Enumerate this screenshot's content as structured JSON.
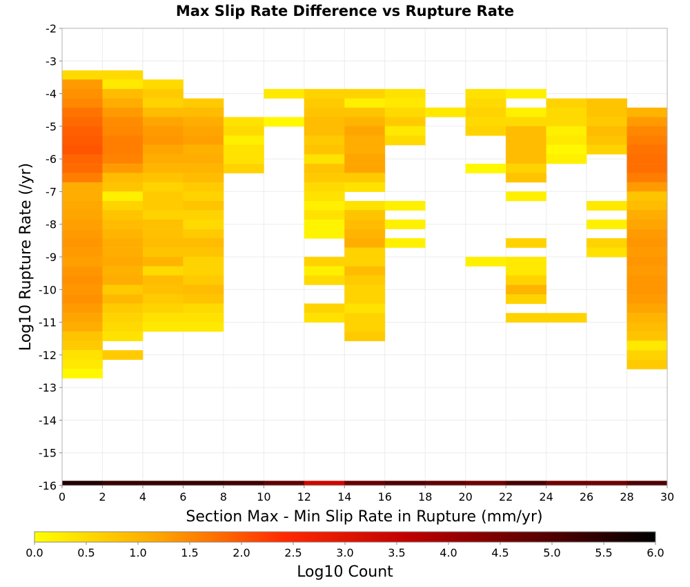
{
  "chart_data": {
    "type": "heatmap",
    "title": "Max Slip Rate Difference vs Rupture Rate",
    "xlabel": "Section Max - Min Slip Rate in Rupture (mm/yr)",
    "ylabel": "Log10 Rupture Rate (/yr)",
    "xlim": [
      0,
      30
    ],
    "ylim": [
      -16,
      -2
    ],
    "x_ticks": [
      0,
      2,
      4,
      6,
      8,
      10,
      12,
      14,
      16,
      18,
      20,
      22,
      24,
      26,
      28,
      30
    ],
    "y_ticks": [
      -2,
      -3,
      -4,
      -5,
      -6,
      -7,
      -8,
      -9,
      -10,
      -11,
      -12,
      -13,
      -14,
      -15,
      -16
    ],
    "x_bin_width": 2,
    "y_bin_height": 0.2857,
    "colorbar": {
      "label": "Log10 Count",
      "range": [
        0,
        6
      ],
      "ticks": [
        "0.0",
        "0.5",
        "1.0",
        "1.5",
        "2.0",
        "2.5",
        "3.0",
        "3.5",
        "4.0",
        "4.5",
        "5.0",
        "5.5",
        "6.0"
      ],
      "stops": [
        "#ffff00",
        "#ffd300",
        "#ffa500",
        "#ff6a00",
        "#ff2a00",
        "#e01500",
        "#c00000",
        "#900000",
        "#600000",
        "#300000",
        "#000000"
      ]
    },
    "grid": true,
    "cells": [
      {
        "x": 0,
        "y": -3.43,
        "v": 0.5
      },
      {
        "x": 0,
        "y": -3.71,
        "v": 1.3
      },
      {
        "x": 0,
        "y": -4.0,
        "v": 1.4
      },
      {
        "x": 0,
        "y": -4.29,
        "v": 1.5
      },
      {
        "x": 0,
        "y": -4.57,
        "v": 1.7
      },
      {
        "x": 0,
        "y": -4.86,
        "v": 1.8
      },
      {
        "x": 0,
        "y": -5.14,
        "v": 1.9
      },
      {
        "x": 0,
        "y": -5.43,
        "v": 1.95
      },
      {
        "x": 0,
        "y": -5.71,
        "v": 2.0
      },
      {
        "x": 0,
        "y": -6.0,
        "v": 1.85
      },
      {
        "x": 0,
        "y": -6.29,
        "v": 1.8
      },
      {
        "x": 0,
        "y": -6.57,
        "v": 1.6
      },
      {
        "x": 0,
        "y": -6.86,
        "v": 1.1
      },
      {
        "x": 0,
        "y": -7.14,
        "v": 1.1
      },
      {
        "x": 0,
        "y": -7.43,
        "v": 1.15
      },
      {
        "x": 0,
        "y": -7.71,
        "v": 1.2
      },
      {
        "x": 0,
        "y": -8.0,
        "v": 1.25
      },
      {
        "x": 0,
        "y": -8.29,
        "v": 1.3
      },
      {
        "x": 0,
        "y": -8.57,
        "v": 1.35
      },
      {
        "x": 0,
        "y": -8.86,
        "v": 1.3
      },
      {
        "x": 0,
        "y": -9.14,
        "v": 1.25
      },
      {
        "x": 0,
        "y": -9.43,
        "v": 1.35
      },
      {
        "x": 0,
        "y": -9.71,
        "v": 1.4
      },
      {
        "x": 0,
        "y": -10.0,
        "v": 1.35
      },
      {
        "x": 0,
        "y": -10.29,
        "v": 1.4
      },
      {
        "x": 0,
        "y": -10.57,
        "v": 1.3
      },
      {
        "x": 0,
        "y": -10.86,
        "v": 1.2
      },
      {
        "x": 0,
        "y": -11.14,
        "v": 1.1
      },
      {
        "x": 0,
        "y": -11.43,
        "v": 0.8
      },
      {
        "x": 0,
        "y": -11.71,
        "v": 0.7
      },
      {
        "x": 0,
        "y": -12.0,
        "v": 0.4
      },
      {
        "x": 0,
        "y": -12.29,
        "v": 0.3
      },
      {
        "x": 0,
        "y": -12.57,
        "v": 0.1
      },
      {
        "x": 2,
        "y": -3.43,
        "v": 0.5
      },
      {
        "x": 2,
        "y": -3.71,
        "v": 0.3
      },
      {
        "x": 2,
        "y": -4.0,
        "v": 0.9
      },
      {
        "x": 2,
        "y": -4.29,
        "v": 1.1
      },
      {
        "x": 2,
        "y": -4.57,
        "v": 1.3
      },
      {
        "x": 2,
        "y": -4.86,
        "v": 1.45
      },
      {
        "x": 2,
        "y": -5.14,
        "v": 1.5
      },
      {
        "x": 2,
        "y": -5.43,
        "v": 1.6
      },
      {
        "x": 2,
        "y": -5.71,
        "v": 1.6
      },
      {
        "x": 2,
        "y": -6.0,
        "v": 1.55
      },
      {
        "x": 2,
        "y": -6.29,
        "v": 1.3
      },
      {
        "x": 2,
        "y": -6.57,
        "v": 0.9
      },
      {
        "x": 2,
        "y": -6.86,
        "v": 0.8
      },
      {
        "x": 2,
        "y": -7.14,
        "v": 0.2
      },
      {
        "x": 2,
        "y": -7.43,
        "v": 0.6
      },
      {
        "x": 2,
        "y": -7.71,
        "v": 0.8
      },
      {
        "x": 2,
        "y": -8.0,
        "v": 0.9
      },
      {
        "x": 2,
        "y": -8.29,
        "v": 1.0
      },
      {
        "x": 2,
        "y": -8.57,
        "v": 1.1
      },
      {
        "x": 2,
        "y": -8.86,
        "v": 1.1
      },
      {
        "x": 2,
        "y": -9.14,
        "v": 1.15
      },
      {
        "x": 2,
        "y": -9.43,
        "v": 1.05
      },
      {
        "x": 2,
        "y": -9.71,
        "v": 1.1
      },
      {
        "x": 2,
        "y": -10.0,
        "v": 0.7
      },
      {
        "x": 2,
        "y": -10.29,
        "v": 0.95
      },
      {
        "x": 2,
        "y": -10.57,
        "v": 0.7
      },
      {
        "x": 2,
        "y": -10.86,
        "v": 0.6
      },
      {
        "x": 2,
        "y": -11.14,
        "v": 0.5
      },
      {
        "x": 2,
        "y": -11.43,
        "v": 0.4
      },
      {
        "x": 2,
        "y": -12.0,
        "v": 0.7
      },
      {
        "x": 4,
        "y": -3.71,
        "v": 0.5
      },
      {
        "x": 4,
        "y": -4.0,
        "v": 0.7
      },
      {
        "x": 4,
        "y": -4.29,
        "v": 0.6
      },
      {
        "x": 4,
        "y": -4.57,
        "v": 0.9
      },
      {
        "x": 4,
        "y": -4.86,
        "v": 1.2
      },
      {
        "x": 4,
        "y": -5.14,
        "v": 1.3
      },
      {
        "x": 4,
        "y": -5.43,
        "v": 1.35
      },
      {
        "x": 4,
        "y": -5.71,
        "v": 1.2
      },
      {
        "x": 4,
        "y": -6.0,
        "v": 1.1
      },
      {
        "x": 4,
        "y": -6.29,
        "v": 1.0
      },
      {
        "x": 4,
        "y": -6.57,
        "v": 0.8
      },
      {
        "x": 4,
        "y": -6.86,
        "v": 0.6
      },
      {
        "x": 4,
        "y": -7.14,
        "v": 0.7
      },
      {
        "x": 4,
        "y": -7.43,
        "v": 0.7
      },
      {
        "x": 4,
        "y": -7.71,
        "v": 0.6
      },
      {
        "x": 4,
        "y": -8.0,
        "v": 0.85
      },
      {
        "x": 4,
        "y": -8.29,
        "v": 0.85
      },
      {
        "x": 4,
        "y": -8.57,
        "v": 0.9
      },
      {
        "x": 4,
        "y": -8.86,
        "v": 0.8
      },
      {
        "x": 4,
        "y": -9.14,
        "v": 1.0
      },
      {
        "x": 4,
        "y": -9.43,
        "v": 0.5
      },
      {
        "x": 4,
        "y": -9.71,
        "v": 0.9
      },
      {
        "x": 4,
        "y": -10.0,
        "v": 0.85
      },
      {
        "x": 4,
        "y": -10.29,
        "v": 0.7
      },
      {
        "x": 4,
        "y": -10.57,
        "v": 0.6
      },
      {
        "x": 4,
        "y": -10.86,
        "v": 0.4
      },
      {
        "x": 4,
        "y": -11.14,
        "v": 0.3
      },
      {
        "x": 6,
        "y": -4.29,
        "v": 0.7
      },
      {
        "x": 6,
        "y": -4.57,
        "v": 0.9
      },
      {
        "x": 6,
        "y": -4.86,
        "v": 1.1
      },
      {
        "x": 6,
        "y": -5.14,
        "v": 1.2
      },
      {
        "x": 6,
        "y": -5.43,
        "v": 1.25
      },
      {
        "x": 6,
        "y": -5.71,
        "v": 1.05
      },
      {
        "x": 6,
        "y": -6.0,
        "v": 1.1
      },
      {
        "x": 6,
        "y": -6.29,
        "v": 1.0
      },
      {
        "x": 6,
        "y": -6.57,
        "v": 0.9
      },
      {
        "x": 6,
        "y": -6.86,
        "v": 0.7
      },
      {
        "x": 6,
        "y": -7.14,
        "v": 0.6
      },
      {
        "x": 6,
        "y": -7.43,
        "v": 0.8
      },
      {
        "x": 6,
        "y": -7.71,
        "v": 0.6
      },
      {
        "x": 6,
        "y": -8.0,
        "v": 0.5
      },
      {
        "x": 6,
        "y": -8.29,
        "v": 0.7
      },
      {
        "x": 6,
        "y": -8.57,
        "v": 0.9
      },
      {
        "x": 6,
        "y": -8.86,
        "v": 0.8
      },
      {
        "x": 6,
        "y": -9.14,
        "v": 0.6
      },
      {
        "x": 6,
        "y": -9.43,
        "v": 0.6
      },
      {
        "x": 6,
        "y": -9.71,
        "v": 0.7
      },
      {
        "x": 6,
        "y": -10.0,
        "v": 0.9
      },
      {
        "x": 6,
        "y": -10.29,
        "v": 0.8
      },
      {
        "x": 6,
        "y": -10.57,
        "v": 0.5
      },
      {
        "x": 6,
        "y": -10.86,
        "v": 0.4
      },
      {
        "x": 6,
        "y": -11.14,
        "v": 0.3
      },
      {
        "x": 8,
        "y": -4.86,
        "v": 0.4
      },
      {
        "x": 8,
        "y": -5.14,
        "v": 0.5
      },
      {
        "x": 8,
        "y": -5.43,
        "v": 0.2
      },
      {
        "x": 8,
        "y": -5.71,
        "v": 0.4
      },
      {
        "x": 8,
        "y": -6.0,
        "v": 0.4
      },
      {
        "x": 8,
        "y": -6.29,
        "v": 0.6
      },
      {
        "x": 10,
        "y": -4.0,
        "v": 0.3
      },
      {
        "x": 10,
        "y": -4.86,
        "v": 0.1
      },
      {
        "x": 12,
        "y": -4.0,
        "v": 0.6
      },
      {
        "x": 12,
        "y": -4.29,
        "v": 0.7
      },
      {
        "x": 12,
        "y": -4.57,
        "v": 0.8
      },
      {
        "x": 12,
        "y": -4.86,
        "v": 0.9
      },
      {
        "x": 12,
        "y": -5.14,
        "v": 0.9
      },
      {
        "x": 12,
        "y": -5.43,
        "v": 0.7
      },
      {
        "x": 12,
        "y": -5.71,
        "v": 0.8
      },
      {
        "x": 12,
        "y": -6.0,
        "v": 0.4
      },
      {
        "x": 12,
        "y": -6.29,
        "v": 0.8
      },
      {
        "x": 12,
        "y": -6.57,
        "v": 0.7
      },
      {
        "x": 12,
        "y": -6.86,
        "v": 0.5
      },
      {
        "x": 12,
        "y": -7.14,
        "v": 0.4
      },
      {
        "x": 12,
        "y": -7.43,
        "v": 0.2
      },
      {
        "x": 12,
        "y": -7.71,
        "v": 0.4
      },
      {
        "x": 12,
        "y": -8.0,
        "v": 0.15
      },
      {
        "x": 12,
        "y": -8.29,
        "v": 0.15
      },
      {
        "x": 12,
        "y": -9.14,
        "v": 0.6
      },
      {
        "x": 12,
        "y": -9.43,
        "v": 0.2
      },
      {
        "x": 12,
        "y": -9.71,
        "v": 0.5
      },
      {
        "x": 12,
        "y": -10.57,
        "v": 0.6
      },
      {
        "x": 12,
        "y": -10.86,
        "v": 0.4
      },
      {
        "x": 14,
        "y": -4.0,
        "v": 0.6
      },
      {
        "x": 14,
        "y": -4.29,
        "v": 0.2
      },
      {
        "x": 14,
        "y": -4.57,
        "v": 0.8
      },
      {
        "x": 14,
        "y": -4.86,
        "v": 1.0
      },
      {
        "x": 14,
        "y": -5.14,
        "v": 1.2
      },
      {
        "x": 14,
        "y": -5.43,
        "v": 1.1
      },
      {
        "x": 14,
        "y": -5.71,
        "v": 1.1
      },
      {
        "x": 14,
        "y": -6.0,
        "v": 1.2
      },
      {
        "x": 14,
        "y": -6.29,
        "v": 1.2
      },
      {
        "x": 14,
        "y": -6.57,
        "v": 0.7
      },
      {
        "x": 14,
        "y": -6.86,
        "v": 0.4
      },
      {
        "x": 14,
        "y": -7.43,
        "v": 0.4
      },
      {
        "x": 14,
        "y": -7.71,
        "v": 0.8
      },
      {
        "x": 14,
        "y": -8.0,
        "v": 0.9
      },
      {
        "x": 14,
        "y": -8.29,
        "v": 1.0
      },
      {
        "x": 14,
        "y": -8.57,
        "v": 1.1
      },
      {
        "x": 14,
        "y": -8.86,
        "v": 0.6
      },
      {
        "x": 14,
        "y": -9.14,
        "v": 0.6
      },
      {
        "x": 14,
        "y": -9.43,
        "v": 0.9
      },
      {
        "x": 14,
        "y": -9.71,
        "v": 0.7
      },
      {
        "x": 14,
        "y": -10.0,
        "v": 0.6
      },
      {
        "x": 14,
        "y": -10.29,
        "v": 0.6
      },
      {
        "x": 14,
        "y": -10.57,
        "v": 0.4
      },
      {
        "x": 14,
        "y": -10.86,
        "v": 0.6
      },
      {
        "x": 14,
        "y": -11.14,
        "v": 0.6
      },
      {
        "x": 14,
        "y": -11.43,
        "v": 0.7
      },
      {
        "x": 16,
        "y": -4.0,
        "v": 0.4
      },
      {
        "x": 16,
        "y": -4.29,
        "v": 0.3
      },
      {
        "x": 16,
        "y": -4.57,
        "v": 0.5
      },
      {
        "x": 16,
        "y": -4.86,
        "v": 0.7
      },
      {
        "x": 16,
        "y": -5.14,
        "v": 0.3
      },
      {
        "x": 16,
        "y": -5.43,
        "v": 0.5
      },
      {
        "x": 16,
        "y": -7.43,
        "v": 0.2
      },
      {
        "x": 16,
        "y": -8.0,
        "v": 0.2
      },
      {
        "x": 16,
        "y": -8.57,
        "v": 0.2
      },
      {
        "x": 18,
        "y": -4.57,
        "v": 0.3
      },
      {
        "x": 20,
        "y": -4.0,
        "v": 0.4
      },
      {
        "x": 20,
        "y": -4.29,
        "v": 0.5
      },
      {
        "x": 20,
        "y": -4.57,
        "v": 0.6
      },
      {
        "x": 20,
        "y": -4.86,
        "v": 0.5
      },
      {
        "x": 20,
        "y": -5.14,
        "v": 0.6
      },
      {
        "x": 20,
        "y": -6.29,
        "v": 0.1
      },
      {
        "x": 20,
        "y": -9.14,
        "v": 0.2
      },
      {
        "x": 22,
        "y": -4.0,
        "v": 0.2
      },
      {
        "x": 22,
        "y": -4.57,
        "v": 0.2
      },
      {
        "x": 22,
        "y": -4.86,
        "v": 0.5
      },
      {
        "x": 22,
        "y": -5.14,
        "v": 0.9
      },
      {
        "x": 22,
        "y": -5.43,
        "v": 0.9
      },
      {
        "x": 22,
        "y": -5.71,
        "v": 0.9
      },
      {
        "x": 22,
        "y": -6.0,
        "v": 0.9
      },
      {
        "x": 22,
        "y": -6.29,
        "v": 0.6
      },
      {
        "x": 22,
        "y": -6.57,
        "v": 0.8
      },
      {
        "x": 22,
        "y": -7.14,
        "v": 0.2
      },
      {
        "x": 22,
        "y": -8.57,
        "v": 0.6
      },
      {
        "x": 22,
        "y": -9.14,
        "v": 0.3
      },
      {
        "x": 22,
        "y": -9.43,
        "v": 0.3
      },
      {
        "x": 22,
        "y": -9.71,
        "v": 0.6
      },
      {
        "x": 22,
        "y": -10.0,
        "v": 1.0
      },
      {
        "x": 22,
        "y": -10.29,
        "v": 0.6
      },
      {
        "x": 22,
        "y": -10.86,
        "v": 0.6
      },
      {
        "x": 24,
        "y": -4.29,
        "v": 0.6
      },
      {
        "x": 24,
        "y": -4.57,
        "v": 0.5
      },
      {
        "x": 24,
        "y": -4.86,
        "v": 0.5
      },
      {
        "x": 24,
        "y": -5.14,
        "v": 0.2
      },
      {
        "x": 24,
        "y": -5.43,
        "v": 0.3
      },
      {
        "x": 24,
        "y": -5.71,
        "v": 0.1
      },
      {
        "x": 24,
        "y": -6.0,
        "v": 0.2
      },
      {
        "x": 24,
        "y": -10.86,
        "v": 0.6
      },
      {
        "x": 26,
        "y": -4.29,
        "v": 0.8
      },
      {
        "x": 26,
        "y": -4.57,
        "v": 0.8
      },
      {
        "x": 26,
        "y": -4.86,
        "v": 0.7
      },
      {
        "x": 26,
        "y": -5.14,
        "v": 0.9
      },
      {
        "x": 26,
        "y": -5.43,
        "v": 0.8
      },
      {
        "x": 26,
        "y": -5.71,
        "v": 0.6
      },
      {
        "x": 26,
        "y": -7.43,
        "v": 0.3
      },
      {
        "x": 26,
        "y": -8.0,
        "v": 0.2
      },
      {
        "x": 26,
        "y": -8.57,
        "v": 0.6
      },
      {
        "x": 26,
        "y": -8.86,
        "v": 0.4
      },
      {
        "x": 28,
        "y": -4.57,
        "v": 1.0
      },
      {
        "x": 28,
        "y": -4.86,
        "v": 1.3
      },
      {
        "x": 28,
        "y": -5.14,
        "v": 1.5
      },
      {
        "x": 28,
        "y": -5.43,
        "v": 1.6
      },
      {
        "x": 28,
        "y": -5.71,
        "v": 1.7
      },
      {
        "x": 28,
        "y": -6.0,
        "v": 1.75
      },
      {
        "x": 28,
        "y": -6.29,
        "v": 1.75
      },
      {
        "x": 28,
        "y": -6.57,
        "v": 1.6
      },
      {
        "x": 28,
        "y": -6.86,
        "v": 1.3
      },
      {
        "x": 28,
        "y": -7.14,
        "v": 0.8
      },
      {
        "x": 28,
        "y": -7.43,
        "v": 0.9
      },
      {
        "x": 28,
        "y": -7.71,
        "v": 1.1
      },
      {
        "x": 28,
        "y": -8.0,
        "v": 1.2
      },
      {
        "x": 28,
        "y": -8.29,
        "v": 1.3
      },
      {
        "x": 28,
        "y": -8.57,
        "v": 1.35
      },
      {
        "x": 28,
        "y": -8.86,
        "v": 1.3
      },
      {
        "x": 28,
        "y": -9.14,
        "v": 1.35
      },
      {
        "x": 28,
        "y": -9.43,
        "v": 1.3
      },
      {
        "x": 28,
        "y": -9.71,
        "v": 1.35
      },
      {
        "x": 28,
        "y": -10.0,
        "v": 1.35
      },
      {
        "x": 28,
        "y": -10.29,
        "v": 1.3
      },
      {
        "x": 28,
        "y": -10.57,
        "v": 1.2
      },
      {
        "x": 28,
        "y": -10.86,
        "v": 1.0
      },
      {
        "x": 28,
        "y": -11.14,
        "v": 0.9
      },
      {
        "x": 28,
        "y": -11.43,
        "v": 0.8
      },
      {
        "x": 28,
        "y": -11.71,
        "v": 0.3
      },
      {
        "x": 28,
        "y": -12.0,
        "v": 0.6
      },
      {
        "x": 28,
        "y": -12.29,
        "v": 0.7
      }
    ],
    "bottom_row": {
      "y": -16,
      "values": [
        5.6,
        5.3,
        5.3,
        5.3,
        5.2,
        4.8,
        3.4,
        4.7,
        5.0,
        4.8,
        4.6,
        5.1,
        4.6,
        4.6,
        5.0
      ]
    }
  }
}
